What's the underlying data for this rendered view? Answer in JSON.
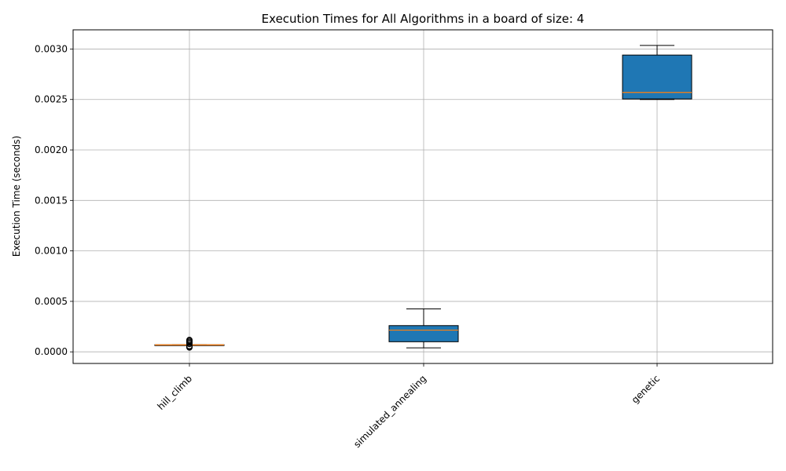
{
  "chart_data": {
    "type": "box",
    "title": "Execution Times for All Algorithms in a board of size: 4",
    "xlabel": "",
    "ylabel": "Execution Time (seconds)",
    "ylim": [
      -0.000115,
      0.00319
    ],
    "yticks": [
      0.0,
      0.0005,
      0.001,
      0.0015,
      0.002,
      0.0025,
      0.003
    ],
    "ytick_labels": [
      "0.0000",
      "0.0005",
      "0.0010",
      "0.0015",
      "0.0020",
      "0.0025",
      "0.0030"
    ],
    "grid": true,
    "box_color": "#1f77b4",
    "median_color": "#ff7f0e",
    "categories": [
      "hill_climb",
      "simulated_annealing",
      "genetic"
    ],
    "boxes": [
      {
        "name": "hill_climb",
        "whislo": 6.8e-05,
        "q1": 6.8e-05,
        "med": 6.9e-05,
        "q3": 7e-05,
        "whishi": 7e-05,
        "fliers": [
          4.3e-05,
          4.8e-05,
          5.3e-05,
          5.8e-05,
          7.8e-05,
          9e-05,
          0.0001,
          0.00011,
          0.000118
        ]
      },
      {
        "name": "simulated_annealing",
        "whislo": 4e-05,
        "q1": 0.0001,
        "med": 0.000215,
        "q3": 0.00026,
        "whishi": 0.000425,
        "fliers": []
      },
      {
        "name": "genetic",
        "whislo": 0.0025,
        "q1": 0.002505,
        "med": 0.00257,
        "q3": 0.00294,
        "whishi": 0.003035,
        "fliers": []
      }
    ]
  }
}
